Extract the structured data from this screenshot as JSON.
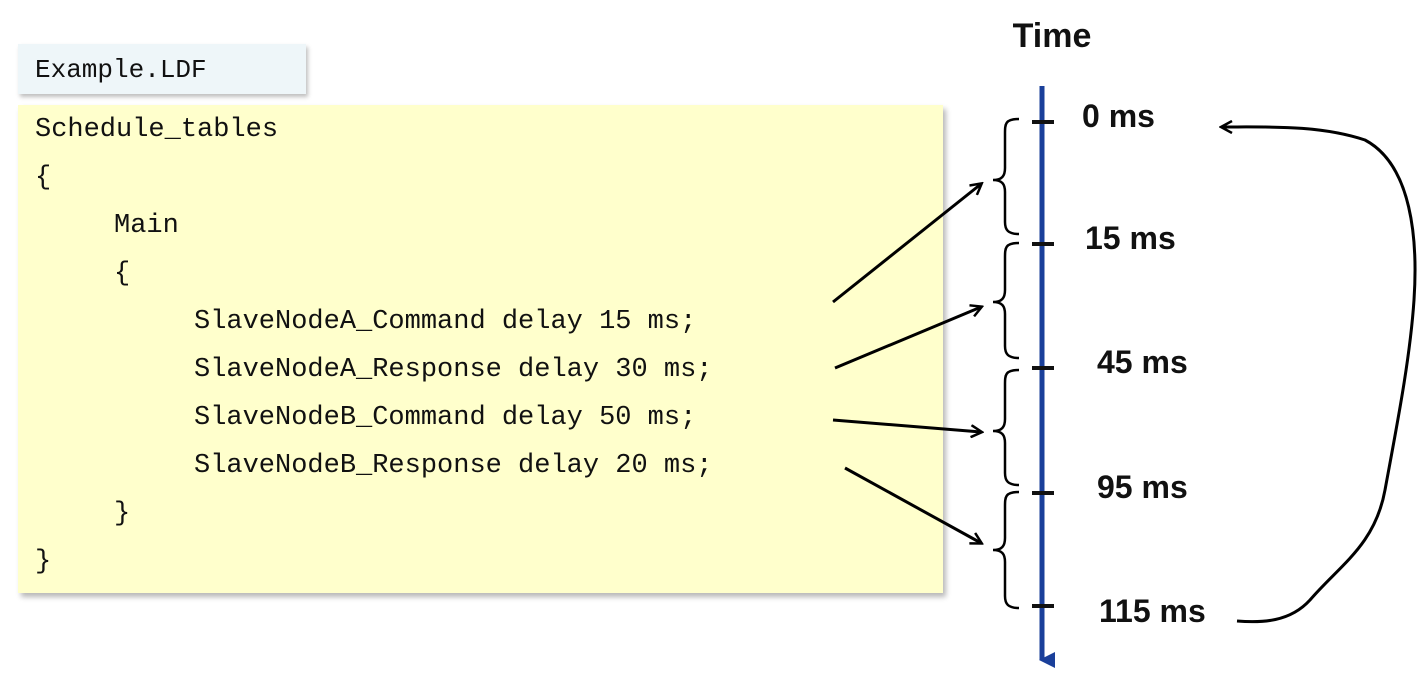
{
  "file_name": "Example.LDF",
  "code": {
    "line1": "Schedule_tables",
    "line2": "{",
    "line3": "Main",
    "line4": "{",
    "line5": "SlaveNodeA_Command delay 15 ms;",
    "line6": "SlaveNodeA_Response delay 30 ms;",
    "line7": "SlaveNodeB_Command delay 50 ms;",
    "line8": "SlaveNodeB_Response delay 20 ms;",
    "line9": "}",
    "line10": "}"
  },
  "timeline": {
    "title": "Time",
    "ticks": [
      "0 ms",
      "15 ms",
      "45 ms",
      "95 ms",
      "115 ms"
    ],
    "axis_color": "#1a3f9a"
  }
}
